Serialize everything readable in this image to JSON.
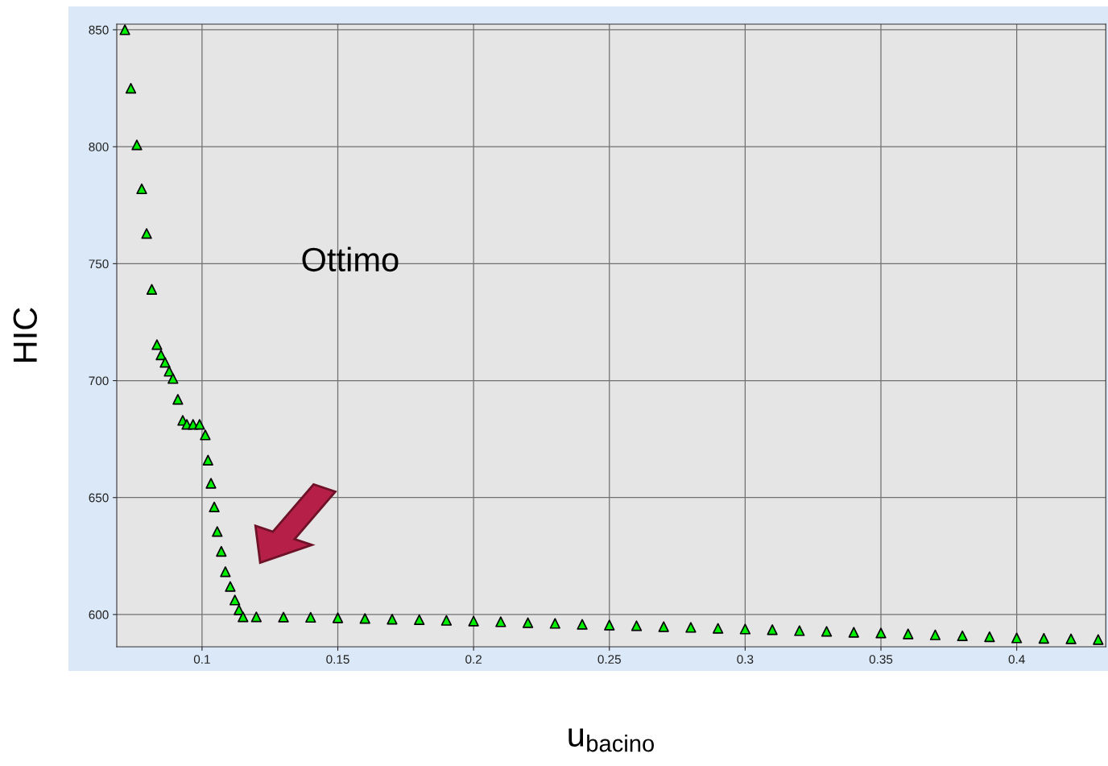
{
  "chart_data": {
    "type": "scatter",
    "xlabel": "u$_{bacino}$",
    "ylabel": "HIC",
    "annotations": [
      "Ottimo"
    ],
    "series": [
      {
        "color": "#00ee00",
        "x": [
          0.0716,
          0.0738,
          0.076,
          0.0778,
          0.0796,
          0.0815,
          0.0834,
          0.0849,
          0.0864,
          0.0879,
          0.0893,
          0.0911,
          0.0929,
          0.0944,
          0.0967,
          0.0991,
          0.1012,
          0.1022,
          0.1033,
          0.1045,
          0.1056,
          0.1071,
          0.1086,
          0.1104,
          0.1121,
          0.1136,
          0.1151,
          0.12,
          0.13,
          0.14,
          0.15,
          0.16,
          0.17,
          0.18,
          0.19,
          0.2,
          0.21,
          0.22,
          0.23,
          0.24,
          0.25,
          0.26,
          0.27,
          0.28,
          0.29,
          0.3,
          0.31,
          0.32,
          0.33,
          0.34,
          0.35,
          0.36,
          0.37,
          0.38,
          0.39,
          0.4,
          0.41,
          0.42,
          0.43
        ],
        "values": [
          850,
          825,
          800.8,
          782,
          762.9,
          739,
          715.4,
          711,
          707.8,
          704,
          700.9,
          692,
          683,
          681.3,
          681.3,
          681.3,
          676.8,
          666,
          656.1,
          646,
          635.5,
          627,
          618.3,
          612,
          606.2,
          602,
          599,
          599,
          598.9,
          598.8,
          598.6,
          598.3,
          598,
          597.8,
          597.5,
          597.2,
          596.9,
          596.5,
          596.2,
          595.8,
          595.5,
          595.2,
          594.8,
          594.5,
          594.1,
          593.8,
          593.5,
          593.1,
          592.8,
          592.4,
          592.1,
          591.7,
          591.3,
          590.9,
          590.5,
          590,
          589.8,
          589.6,
          589.3
        ]
      }
    ],
    "marker": "triangle",
    "grid": true,
    "xlim": [
      0.0686,
      0.4328
    ],
    "xticks": [
      0.1,
      0.15,
      0.2,
      0.25,
      0.3,
      0.35,
      0.4
    ],
    "ylim": [
      586.2,
      852.4
    ],
    "yticks": [
      600,
      650,
      700,
      750,
      800,
      850
    ]
  }
}
